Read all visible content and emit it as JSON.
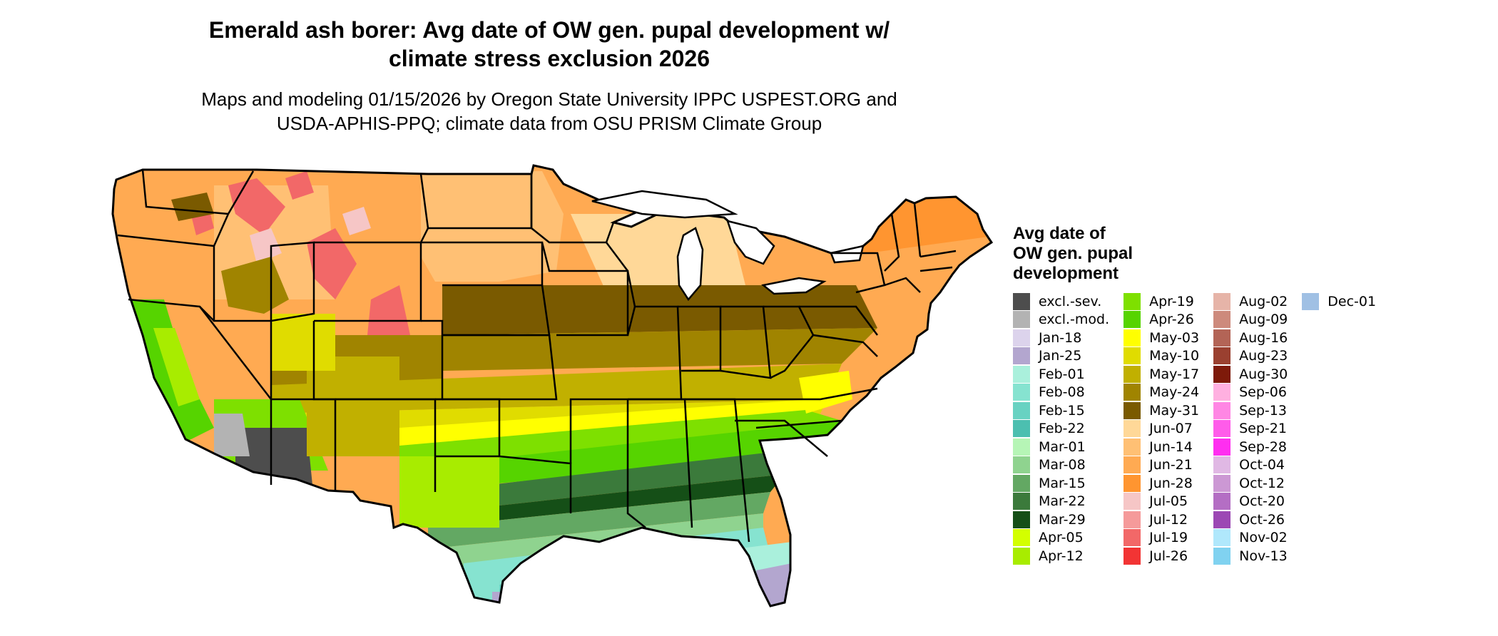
{
  "title": "Emerald ash borer: Avg date of OW gen. pupal development w/\nclimate stress exclusion 2026",
  "subtitle": "Maps and modeling 01/15/2026 by Oregon State University IPPC USPEST.ORG and\nUSDA-APHIS-PPQ; climate data from OSU PRISM Climate Group",
  "legend": {
    "title": "Avg date of\nOW gen. pupal\ndevelopment",
    "items": [
      {
        "label": "excl.-sev.",
        "color": "#4d4d4d"
      },
      {
        "label": "excl.-mod.",
        "color": "#b3b3b3"
      },
      {
        "label": "Jan-18",
        "color": "#dcd3ec"
      },
      {
        "label": "Jan-25",
        "color": "#b3a6cf"
      },
      {
        "label": "Feb-01",
        "color": "#aaf0dc"
      },
      {
        "label": "Feb-08",
        "color": "#86e3d0"
      },
      {
        "label": "Feb-15",
        "color": "#68d2c2"
      },
      {
        "label": "Feb-22",
        "color": "#4cbfb0"
      },
      {
        "label": "Mar-01",
        "color": "#b6f5b6"
      },
      {
        "label": "Mar-08",
        "color": "#8fd38f"
      },
      {
        "label": "Mar-15",
        "color": "#63a863"
      },
      {
        "label": "Mar-22",
        "color": "#3b7a3b"
      },
      {
        "label": "Mar-29",
        "color": "#154f17"
      },
      {
        "label": "Apr-05",
        "color": "#d3ff00"
      },
      {
        "label": "Apr-12",
        "color": "#a8ec00"
      },
      {
        "label": "Apr-19",
        "color": "#7ee000"
      },
      {
        "label": "Apr-26",
        "color": "#56d400"
      },
      {
        "label": "May-03",
        "color": "#ffff00"
      },
      {
        "label": "May-10",
        "color": "#e0dc00"
      },
      {
        "label": "May-17",
        "color": "#c1b000"
      },
      {
        "label": "May-24",
        "color": "#a08400"
      },
      {
        "label": "May-31",
        "color": "#7a5a00"
      },
      {
        "label": "Jun-07",
        "color": "#ffd898"
      },
      {
        "label": "Jun-14",
        "color": "#ffc074"
      },
      {
        "label": "Jun-21",
        "color": "#ffaa52"
      },
      {
        "label": "Jun-28",
        "color": "#ff9530"
      },
      {
        "label": "Jul-05",
        "color": "#f6c6c6"
      },
      {
        "label": "Jul-12",
        "color": "#f59a9a"
      },
      {
        "label": "Jul-19",
        "color": "#f26868"
      },
      {
        "label": "Jul-26",
        "color": "#f23434"
      },
      {
        "label": "Aug-02",
        "color": "#e6b4a8"
      },
      {
        "label": "Aug-09",
        "color": "#cd8a7c"
      },
      {
        "label": "Aug-16",
        "color": "#b36456"
      },
      {
        "label": "Aug-23",
        "color": "#9a4030"
      },
      {
        "label": "Aug-30",
        "color": "#7e1a0a"
      },
      {
        "label": "Sep-06",
        "color": "#ffb0e0"
      },
      {
        "label": "Sep-13",
        "color": "#ff86e4"
      },
      {
        "label": "Sep-21",
        "color": "#ff5cea"
      },
      {
        "label": "Sep-28",
        "color": "#ff2ef0"
      },
      {
        "label": "Oct-04",
        "color": "#e0b8e4"
      },
      {
        "label": "Oct-12",
        "color": "#cc98d4"
      },
      {
        "label": "Oct-20",
        "color": "#b46ec4"
      },
      {
        "label": "Oct-26",
        "color": "#9c48b4"
      },
      {
        "label": "Nov-02",
        "color": "#b0e8fc"
      },
      {
        "label": "Nov-13",
        "color": "#80d2f0"
      },
      {
        "label": "Dec-01",
        "color": "#a0c0e4"
      }
    ]
  }
}
